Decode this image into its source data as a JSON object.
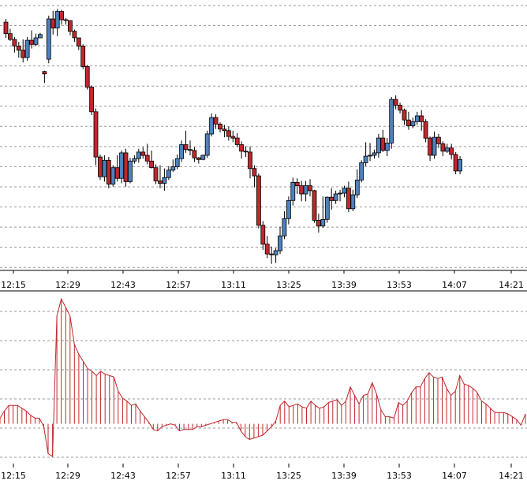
{
  "chart_data": [
    {
      "type": "candlestick",
      "x_ticks": [
        "12:15",
        "12:29",
        "12:43",
        "12:57",
        "13:11",
        "13:25",
        "13:39",
        "13:53",
        "14:07",
        "14:21"
      ],
      "grid": "horizontal-dashed",
      "colors": {
        "up": "#4f81bd",
        "down": "#c0272d",
        "wick": "#000000"
      },
      "candles": [
        [
          57.52,
          57.38,
          57.56,
          57.33
        ],
        [
          57.38,
          57.31,
          57.44,
          57.29
        ],
        [
          57.31,
          57.23,
          57.34,
          57.15
        ],
        [
          57.23,
          57.18,
          57.28,
          57.09
        ],
        [
          57.18,
          57.09,
          57.31,
          57.03
        ],
        [
          57.09,
          57.3,
          57.34,
          57.05
        ],
        [
          57.3,
          57.25,
          57.42,
          57.2
        ],
        [
          57.25,
          57.33,
          57.38,
          57.23
        ],
        [
          57.33,
          57.37,
          57.39,
          57.33
        ],
        [
          56.92,
          56.89,
          56.93,
          56.78
        ],
        [
          57.07,
          57.56,
          57.6,
          57.02
        ],
        [
          57.56,
          57.45,
          57.66,
          57.37
        ],
        [
          57.45,
          57.65,
          57.68,
          57.35
        ],
        [
          57.65,
          57.55,
          57.67,
          57.49
        ],
        [
          57.55,
          57.54,
          57.57,
          57.49
        ],
        [
          57.54,
          57.41,
          57.54,
          57.36
        ],
        [
          57.41,
          57.33,
          57.43,
          57.28
        ],
        [
          57.33,
          57.23,
          57.33,
          57.18
        ],
        [
          57.23,
          56.98,
          57.25,
          56.95
        ],
        [
          56.98,
          56.73,
          57.0,
          56.7
        ],
        [
          56.73,
          56.43,
          56.75,
          56.39
        ],
        [
          56.43,
          55.88,
          56.47,
          55.78
        ],
        [
          55.88,
          55.64,
          55.91,
          55.6
        ],
        [
          55.64,
          55.84,
          55.9,
          55.58
        ],
        [
          55.84,
          55.55,
          55.88,
          55.5
        ],
        [
          55.55,
          55.75,
          55.78,
          55.52
        ],
        [
          55.75,
          55.62,
          55.9,
          55.58
        ],
        [
          55.62,
          55.93,
          55.96,
          55.56
        ],
        [
          55.93,
          55.58,
          55.98,
          55.52
        ],
        [
          55.58,
          55.83,
          55.87,
          55.56
        ],
        [
          55.83,
          55.86,
          55.9,
          55.8
        ],
        [
          55.86,
          55.94,
          55.98,
          55.81
        ],
        [
          55.94,
          55.9,
          56.0,
          55.86
        ],
        [
          55.9,
          55.83,
          56.04,
          55.79
        ],
        [
          55.83,
          55.75,
          55.96,
          55.74
        ],
        [
          55.75,
          55.59,
          55.79,
          55.55
        ],
        [
          55.59,
          55.56,
          55.78,
          55.5
        ],
        [
          55.56,
          55.63,
          55.74,
          55.47
        ],
        [
          55.63,
          55.72,
          55.77,
          55.6
        ],
        [
          55.72,
          55.76,
          55.85,
          55.7
        ],
        [
          55.76,
          55.86,
          55.91,
          55.73
        ],
        [
          55.86,
          56.03,
          56.08,
          55.82
        ],
        [
          56.03,
          55.97,
          56.2,
          55.93
        ],
        [
          55.97,
          55.96,
          56.08,
          55.9
        ],
        [
          55.96,
          55.87,
          56.0,
          55.82
        ],
        [
          55.87,
          55.85,
          55.88,
          55.8
        ],
        [
          55.85,
          55.9,
          55.91,
          55.84
        ],
        [
          55.9,
          56.16,
          56.2,
          55.87
        ],
        [
          56.16,
          56.36,
          56.41,
          56.13
        ],
        [
          56.36,
          56.28,
          56.4,
          56.22
        ],
        [
          56.28,
          56.22,
          56.3,
          56.18
        ],
        [
          56.22,
          56.2,
          56.27,
          56.12
        ],
        [
          56.2,
          56.13,
          56.25,
          56.08
        ],
        [
          56.13,
          56.11,
          56.2,
          56.06
        ],
        [
          56.11,
          56.03,
          56.17,
          56.0
        ],
        [
          56.03,
          55.95,
          56.07,
          55.86
        ],
        [
          55.95,
          55.94,
          56.01,
          55.88
        ],
        [
          55.94,
          55.74,
          56.01,
          55.62
        ],
        [
          55.74,
          55.65,
          55.78,
          55.51
        ],
        [
          55.65,
          55.05,
          55.68,
          55.01
        ],
        [
          55.05,
          54.82,
          55.1,
          54.75
        ],
        [
          54.82,
          54.7,
          54.92,
          54.65
        ],
        [
          54.7,
          54.69,
          54.79,
          54.58
        ],
        [
          54.69,
          54.74,
          54.77,
          54.59
        ],
        [
          54.74,
          54.92,
          55.03,
          54.7
        ],
        [
          54.92,
          55.13,
          55.22,
          54.88
        ],
        [
          55.13,
          55.35,
          55.4,
          55.06
        ],
        [
          55.35,
          55.57,
          55.63,
          55.29
        ],
        [
          55.57,
          55.53,
          55.62,
          55.43
        ],
        [
          55.53,
          55.43,
          55.59,
          55.34
        ],
        [
          55.43,
          55.53,
          55.59,
          55.34
        ],
        [
          55.53,
          55.47,
          55.61,
          55.4
        ],
        [
          55.47,
          55.11,
          55.48,
          55.08
        ],
        [
          55.11,
          55.04,
          55.19,
          54.96
        ],
        [
          55.04,
          55.12,
          55.4,
          55.02
        ],
        [
          55.12,
          55.39,
          55.4,
          55.08
        ],
        [
          55.39,
          55.35,
          55.5,
          55.24
        ],
        [
          55.35,
          55.43,
          55.47,
          55.31
        ],
        [
          55.43,
          55.44,
          55.48,
          55.34
        ],
        [
          55.44,
          55.5,
          55.53,
          55.39
        ],
        [
          55.5,
          55.25,
          55.58,
          55.21
        ],
        [
          55.25,
          55.42,
          55.48,
          55.22
        ],
        [
          55.42,
          55.6,
          55.73,
          55.38
        ],
        [
          55.6,
          55.81,
          55.84,
          55.57
        ],
        [
          55.81,
          55.89,
          56.06,
          55.77
        ],
        [
          55.89,
          55.9,
          56.05,
          55.83
        ],
        [
          55.9,
          55.93,
          55.97,
          55.86
        ],
        [
          55.93,
          56.11,
          56.16,
          55.87
        ],
        [
          56.11,
          55.96,
          56.21,
          55.94
        ],
        [
          55.96,
          56.05,
          56.11,
          55.89
        ],
        [
          56.05,
          56.58,
          56.61,
          55.98
        ],
        [
          56.58,
          56.51,
          56.63,
          56.46
        ],
        [
          56.51,
          56.45,
          56.54,
          56.41
        ],
        [
          56.45,
          56.33,
          56.47,
          56.27
        ],
        [
          56.33,
          56.26,
          56.43,
          56.21
        ],
        [
          56.26,
          56.31,
          56.36,
          56.23
        ],
        [
          56.31,
          56.38,
          56.43,
          56.27
        ],
        [
          56.38,
          56.31,
          56.45,
          56.2
        ],
        [
          56.31,
          56.11,
          56.34,
          56.06
        ],
        [
          56.11,
          55.9,
          56.13,
          55.83
        ],
        [
          55.9,
          56.12,
          56.19,
          55.86
        ],
        [
          56.12,
          56.04,
          56.16,
          55.99
        ],
        [
          56.04,
          55.95,
          56.07,
          55.89
        ],
        [
          55.95,
          55.99,
          56.04,
          55.93
        ],
        [
          55.99,
          55.91,
          56.04,
          55.85
        ],
        [
          55.91,
          55.71,
          55.94,
          55.67
        ],
        [
          55.71,
          55.85,
          55.89,
          55.67
        ]
      ]
    },
    {
      "type": "histogram",
      "x_ticks": [
        "12:15",
        "12:29",
        "12:43",
        "12:57",
        "13:11",
        "13:25",
        "13:39",
        "13:53",
        "14:07",
        "14:21"
      ],
      "grid": "horizontal-dashed",
      "color": "#c0272d",
      "values": [
        0.04,
        0.09,
        0.13,
        0.13,
        0.13,
        0.11,
        0.09,
        0.06,
        0.04,
        0.04,
        -0.02,
        -0.21,
        -0.23,
        0.76,
        0.88,
        0.82,
        0.76,
        0.56,
        0.49,
        0.44,
        0.39,
        0.37,
        0.34,
        0.37,
        0.35,
        0.34,
        0.33,
        0.23,
        0.18,
        0.16,
        0.13,
        0.14,
        0.09,
        0.05,
        0.01,
        -0.04,
        -0.05,
        -0.02,
        -0.01,
        0.0,
        -0.01,
        -0.05,
        -0.04,
        -0.04,
        -0.04,
        -0.02,
        -0.02,
        -0.01,
        0.0,
        0.01,
        0.02,
        0.03,
        0.03,
        0.01,
        0.01,
        -0.05,
        -0.09,
        -0.11,
        -0.1,
        -0.09,
        -0.08,
        -0.05,
        -0.02,
        0.02,
        0.13,
        0.16,
        0.12,
        0.13,
        0.14,
        0.12,
        0.11,
        0.16,
        0.13,
        0.11,
        0.12,
        0.15,
        0.16,
        0.17,
        0.13,
        0.16,
        0.26,
        0.2,
        0.14,
        0.2,
        0.21,
        0.29,
        0.21,
        0.1,
        0.05,
        0.05,
        0.04,
        0.15,
        0.13,
        0.16,
        0.22,
        0.26,
        0.26,
        0.32,
        0.36,
        0.33,
        0.32,
        0.33,
        0.25,
        0.2,
        0.23,
        0.34,
        0.28,
        0.27,
        0.25,
        0.22,
        0.16,
        0.14,
        0.11,
        0.08,
        0.08,
        0.08,
        0.07,
        0.05,
        0.03,
        -0.01,
        0.07
      ]
    }
  ]
}
